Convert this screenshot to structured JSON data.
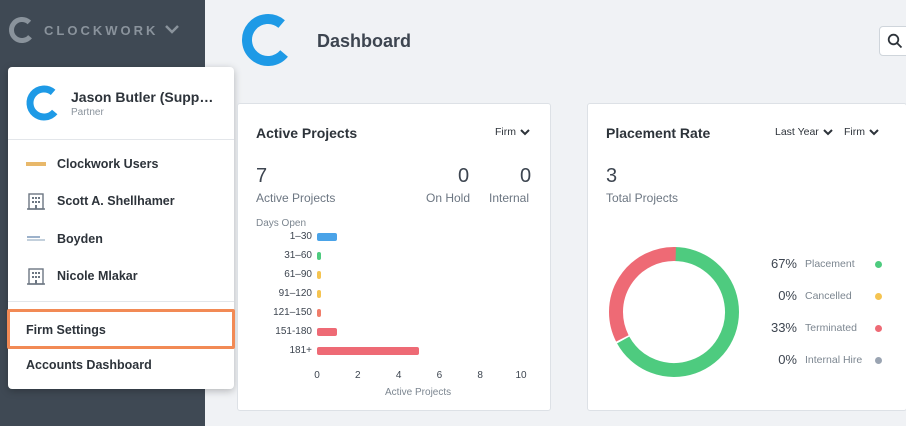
{
  "brand": {
    "name": "CLOCKWORK"
  },
  "user_menu": {
    "user": {
      "name": "Jason Butler (Suppo…",
      "role": "Partner"
    },
    "firms": [
      {
        "label": "Clockwork Users",
        "icon": "clockwork-users-logo"
      },
      {
        "label": "Scott A. Shellhamer",
        "icon": "building-icon"
      },
      {
        "label": "Boyden",
        "icon": "boyden-logo"
      },
      {
        "label": "Nicole Mlakar",
        "icon": "building-icon"
      }
    ],
    "actions": [
      {
        "label": "Firm Settings",
        "highlighted": true
      },
      {
        "label": "Accounts Dashboard",
        "highlighted": false
      }
    ]
  },
  "header": {
    "title": "Dashboard"
  },
  "active_projects": {
    "title": "Active Projects",
    "filter": "Firm",
    "stats": [
      {
        "value": "7",
        "label": "Active Projects"
      },
      {
        "value": "0",
        "label": "On Hold"
      },
      {
        "value": "0",
        "label": "Internal"
      }
    ],
    "chart_data": {
      "type": "bar",
      "orientation": "horizontal",
      "ylabel": "Days Open",
      "xlabel": "Active Projects",
      "categories": [
        "1–30",
        "31–60",
        "61–90",
        "91–120",
        "121–150",
        "151-180",
        "181+"
      ],
      "values": [
        1,
        0,
        0,
        0,
        0,
        1,
        5
      ],
      "colors": [
        "#4aa3e8",
        "#4ecb7f",
        "#f5c451",
        "#f5c451",
        "#f07d6a",
        "#ee6a75",
        "#ee6a75"
      ],
      "xlim": [
        0,
        10
      ],
      "xticks": [
        "0",
        "2",
        "4",
        "6",
        "8",
        "10"
      ]
    }
  },
  "placement_rate": {
    "title": "Placement Rate",
    "filters": [
      "Last Year",
      "Firm"
    ],
    "total": {
      "value": "3",
      "label": "Total Projects"
    },
    "chart_data": {
      "type": "pie",
      "donut": true,
      "labels": [
        "Placement",
        "Cancelled",
        "Terminated",
        "Internal Hire"
      ],
      "values": [
        67,
        0,
        33,
        0
      ],
      "display": [
        "67%",
        "0%",
        "33%",
        "0%"
      ],
      "colors": [
        "#4ecb7f",
        "#f5c451",
        "#ee6a75",
        "#9aa4b2"
      ]
    }
  },
  "colors": {
    "sidebar": "#3f4954",
    "accent_blue": "#1e9ae6",
    "highlight": "#f28a55"
  }
}
